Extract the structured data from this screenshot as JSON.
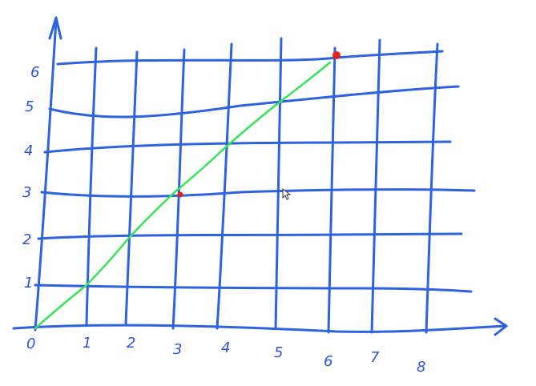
{
  "colors": {
    "grid": "#2f62e0",
    "line": "#39e05a",
    "point": "#e0241b",
    "label": "#2f55d4"
  },
  "chart_data": {
    "type": "line",
    "title": "",
    "xlabel": "",
    "ylabel": "",
    "x_ticks": [
      "0",
      "1",
      "2",
      "3",
      "4",
      "5",
      "6",
      "7",
      "8"
    ],
    "y_ticks": [
      "1",
      "2",
      "3",
      "4",
      "5",
      "6"
    ],
    "xlim": [
      0,
      8.7
    ],
    "ylim": [
      0,
      6.6
    ],
    "grid": true,
    "series": [
      {
        "values": [
          [
            0,
            0
          ],
          [
            1,
            1
          ],
          [
            2,
            2
          ],
          [
            3,
            3
          ],
          [
            4,
            4
          ],
          [
            5,
            5
          ],
          [
            6,
            6
          ]
        ]
      }
    ],
    "highlighted_points": [
      [
        3,
        3
      ],
      [
        6,
        6
      ]
    ]
  }
}
